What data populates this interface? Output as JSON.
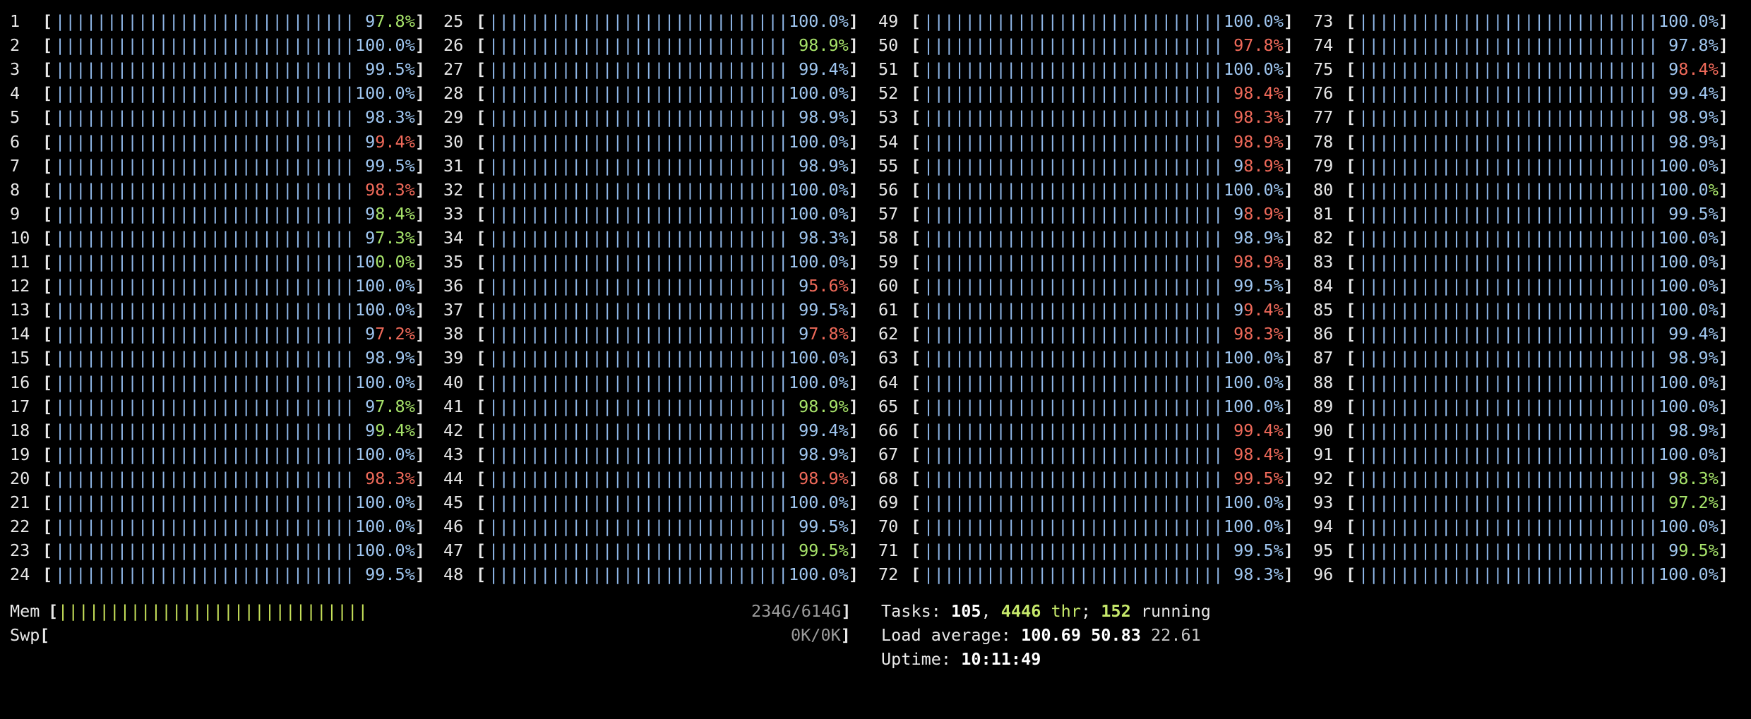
{
  "cpus": [
    {
      "n": "1",
      "pct": "97.8",
      "hl": [
        "g",
        1
      ]
    },
    {
      "n": "2",
      "pct": "100.0"
    },
    {
      "n": "3",
      "pct": "99.5"
    },
    {
      "n": "4",
      "pct": "100.0"
    },
    {
      "n": "5",
      "pct": "98.3"
    },
    {
      "n": "6",
      "pct": "99.4",
      "hl": [
        "r",
        1
      ]
    },
    {
      "n": "7",
      "pct": "99.5"
    },
    {
      "n": "8",
      "pct": "98.3",
      "hl": [
        "r",
        0
      ]
    },
    {
      "n": "9",
      "pct": "98.4",
      "hl": [
        "g",
        1
      ]
    },
    {
      "n": "10",
      "pct": "97.3",
      "hl": [
        "g",
        1
      ]
    },
    {
      "n": "11",
      "pct": "100.0",
      "hl": [
        "g",
        2
      ]
    },
    {
      "n": "12",
      "pct": "100.0"
    },
    {
      "n": "13",
      "pct": "100.0"
    },
    {
      "n": "14",
      "pct": "97.2",
      "hl": [
        "r",
        1
      ]
    },
    {
      "n": "15",
      "pct": "98.9"
    },
    {
      "n": "16",
      "pct": "100.0"
    },
    {
      "n": "17",
      "pct": "97.8",
      "hl": [
        "g",
        1
      ]
    },
    {
      "n": "18",
      "pct": "99.4",
      "hl": [
        "g",
        1
      ]
    },
    {
      "n": "19",
      "pct": "100.0"
    },
    {
      "n": "20",
      "pct": "98.3",
      "hl": [
        "r",
        0
      ]
    },
    {
      "n": "21",
      "pct": "100.0"
    },
    {
      "n": "22",
      "pct": "100.0"
    },
    {
      "n": "23",
      "pct": "100.0"
    },
    {
      "n": "24",
      "pct": "99.5"
    },
    {
      "n": "25",
      "pct": "100.0"
    },
    {
      "n": "26",
      "pct": "98.9",
      "hl": [
        "g",
        0
      ]
    },
    {
      "n": "27",
      "pct": "99.4",
      "hl": [
        "g",
        5
      ]
    },
    {
      "n": "28",
      "pct": "100.0"
    },
    {
      "n": "29",
      "pct": "98.9"
    },
    {
      "n": "30",
      "pct": "100.0"
    },
    {
      "n": "31",
      "pct": "98.9"
    },
    {
      "n": "32",
      "pct": "100.0"
    },
    {
      "n": "33",
      "pct": "100.0"
    },
    {
      "n": "34",
      "pct": "98.3"
    },
    {
      "n": "35",
      "pct": "100.0"
    },
    {
      "n": "36",
      "pct": "95.6",
      "hl": [
        "r",
        1
      ]
    },
    {
      "n": "37",
      "pct": "99.5"
    },
    {
      "n": "38",
      "pct": "97.8",
      "hl": [
        "r",
        1
      ]
    },
    {
      "n": "39",
      "pct": "100.0"
    },
    {
      "n": "40",
      "pct": "100.0"
    },
    {
      "n": "41",
      "pct": "98.9",
      "hl": [
        "g",
        0
      ]
    },
    {
      "n": "42",
      "pct": "99.4"
    },
    {
      "n": "43",
      "pct": "98.9"
    },
    {
      "n": "44",
      "pct": "98.9",
      "hl": [
        "r",
        0
      ]
    },
    {
      "n": "45",
      "pct": "100.0"
    },
    {
      "n": "46",
      "pct": "99.5"
    },
    {
      "n": "47",
      "pct": "99.5",
      "hl": [
        "g",
        0
      ]
    },
    {
      "n": "48",
      "pct": "100.0"
    },
    {
      "n": "49",
      "pct": "100.0"
    },
    {
      "n": "50",
      "pct": "97.8",
      "hl": [
        "r",
        0
      ]
    },
    {
      "n": "51",
      "pct": "100.0"
    },
    {
      "n": "52",
      "pct": "98.4",
      "hl": [
        "r",
        0
      ]
    },
    {
      "n": "53",
      "pct": "98.3",
      "hl": [
        "r",
        0
      ]
    },
    {
      "n": "54",
      "pct": "98.9",
      "hl": [
        "r",
        0
      ]
    },
    {
      "n": "55",
      "pct": "98.9",
      "hl": [
        "r",
        1
      ]
    },
    {
      "n": "56",
      "pct": "100.0"
    },
    {
      "n": "57",
      "pct": "98.9",
      "hl": [
        "r",
        1
      ]
    },
    {
      "n": "58",
      "pct": "98.9"
    },
    {
      "n": "59",
      "pct": "98.9",
      "hl": [
        "r",
        0
      ]
    },
    {
      "n": "60",
      "pct": "99.5"
    },
    {
      "n": "61",
      "pct": "99.4",
      "hl": [
        "r",
        1
      ]
    },
    {
      "n": "62",
      "pct": "98.3",
      "hl": [
        "r",
        0
      ]
    },
    {
      "n": "63",
      "pct": "100.0"
    },
    {
      "n": "64",
      "pct": "100.0"
    },
    {
      "n": "65",
      "pct": "100.0"
    },
    {
      "n": "66",
      "pct": "99.4",
      "hl": [
        "r",
        0
      ]
    },
    {
      "n": "67",
      "pct": "98.4",
      "hl": [
        "r",
        0
      ]
    },
    {
      "n": "68",
      "pct": "99.5",
      "hl": [
        "r",
        0
      ]
    },
    {
      "n": "69",
      "pct": "100.0"
    },
    {
      "n": "70",
      "pct": "100.0"
    },
    {
      "n": "71",
      "pct": "99.5"
    },
    {
      "n": "72",
      "pct": "98.3"
    },
    {
      "n": "73",
      "pct": "100.0"
    },
    {
      "n": "74",
      "pct": "97.8"
    },
    {
      "n": "75",
      "pct": "98.4",
      "hl": [
        "r",
        1
      ]
    },
    {
      "n": "76",
      "pct": "99.4"
    },
    {
      "n": "77",
      "pct": "98.9"
    },
    {
      "n": "78",
      "pct": "98.9"
    },
    {
      "n": "79",
      "pct": "100.0"
    },
    {
      "n": "80",
      "pct": "100.0",
      "hl": [
        "g",
        5
      ]
    },
    {
      "n": "81",
      "pct": "99.5"
    },
    {
      "n": "82",
      "pct": "100.0"
    },
    {
      "n": "83",
      "pct": "100.0"
    },
    {
      "n": "84",
      "pct": "100.0"
    },
    {
      "n": "85",
      "pct": "100.0"
    },
    {
      "n": "86",
      "pct": "99.4"
    },
    {
      "n": "87",
      "pct": "98.9"
    },
    {
      "n": "88",
      "pct": "100.0"
    },
    {
      "n": "89",
      "pct": "100.0"
    },
    {
      "n": "90",
      "pct": "98.9"
    },
    {
      "n": "91",
      "pct": "100.0"
    },
    {
      "n": "92",
      "pct": "98.3",
      "hl": [
        "g",
        1
      ]
    },
    {
      "n": "93",
      "pct": "97.2",
      "hl": [
        "g",
        0
      ]
    },
    {
      "n": "94",
      "pct": "100.0"
    },
    {
      "n": "95",
      "pct": "99.5",
      "hl": [
        "g",
        1
      ]
    },
    {
      "n": "96",
      "pct": "100.0"
    }
  ],
  "mem": {
    "label": "Mem",
    "value": "234G/614G",
    "fraction": 0.38
  },
  "swp": {
    "label": "Swp",
    "value": "0K/0K",
    "fraction": 0
  },
  "tasks": {
    "label": "Tasks: ",
    "count": "105",
    "sep1": ", ",
    "threads": "4446",
    "thr_label": " thr",
    "sep2": "; ",
    "running": "152",
    "running_label": " running"
  },
  "load": {
    "label": "Load average: ",
    "l1": "100.69",
    "l5": "50.83",
    "l15": "22.61"
  },
  "uptime": {
    "label": "Uptime: ",
    "value": "10:11:49"
  },
  "colors": {
    "background": "#000000",
    "bar": "#8fb7e8",
    "percent": "#9fc6f0",
    "highlight_green": "#a7e36a",
    "highlight_red": "#f06a5a",
    "mem_bar": "#c7e25a"
  }
}
